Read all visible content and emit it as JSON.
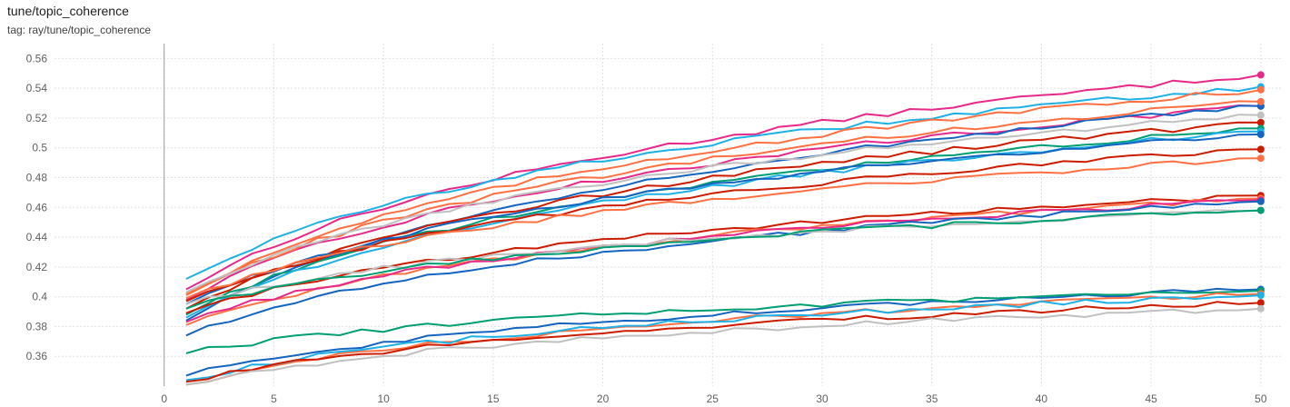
{
  "card": {
    "title": "tune/topic_coherence",
    "tag": "tag: ray/tune/topic_coherence"
  },
  "chart_data": {
    "type": "line",
    "title": "tune/topic_coherence",
    "subtitle": "tag: ray/tune/topic_coherence",
    "xlabel": "",
    "ylabel": "",
    "xlim": [
      -5,
      51
    ],
    "ylim": [
      0.34,
      0.57
    ],
    "x_ticks": [
      0,
      5,
      10,
      15,
      20,
      25,
      30,
      35,
      40,
      45,
      50
    ],
    "y_ticks": [
      0.36,
      0.38,
      0.4,
      0.42,
      0.44,
      0.46,
      0.48,
      0.5,
      0.52,
      0.54,
      0.56
    ],
    "y_tick_labels": [
      "0.36",
      "0.38",
      "0.4",
      "0.42",
      "0.44",
      "0.46",
      "0.48",
      "0.5",
      "0.52",
      "0.54",
      "0.56"
    ],
    "grid": true,
    "legend": "none",
    "x": [
      1,
      50
    ],
    "series": [
      {
        "color": "#e7298a",
        "values": [
          0.405,
          0.549
        ]
      },
      {
        "color": "#1fb0e6",
        "values": [
          0.412,
          0.541
        ]
      },
      {
        "color": "#ff7043",
        "values": [
          0.402,
          0.539
        ]
      },
      {
        "color": "#e7298a",
        "values": [
          0.398,
          0.528
        ]
      },
      {
        "color": "#1565c0",
        "values": [
          0.384,
          0.528
        ]
      },
      {
        "color": "#ff7043",
        "values": [
          0.401,
          0.531
        ]
      },
      {
        "color": "#c0c0c0",
        "values": [
          0.403,
          0.522
        ]
      },
      {
        "color": "#cc1c00",
        "values": [
          0.392,
          0.517
        ]
      },
      {
        "color": "#009e73",
        "values": [
          0.388,
          0.513
        ]
      },
      {
        "color": "#1fb0e6",
        "values": [
          0.386,
          0.511
        ]
      },
      {
        "color": "#1565c0",
        "values": [
          0.395,
          0.509
        ]
      },
      {
        "color": "#cc1c00",
        "values": [
          0.397,
          0.499
        ]
      },
      {
        "color": "#ff7043",
        "values": [
          0.399,
          0.493
        ]
      },
      {
        "color": "#cc1c00",
        "values": [
          0.389,
          0.468
        ]
      },
      {
        "color": "#ff7043",
        "values": [
          0.381,
          0.466
        ]
      },
      {
        "color": "#e7298a",
        "values": [
          0.383,
          0.465
        ]
      },
      {
        "color": "#1565c0",
        "values": [
          0.374,
          0.464
        ]
      },
      {
        "color": "#c0c0c0",
        "values": [
          0.395,
          0.458
        ]
      },
      {
        "color": "#009e73",
        "values": [
          0.392,
          0.458
        ]
      },
      {
        "color": "#1565c0",
        "values": [
          0.347,
          0.405
        ]
      },
      {
        "color": "#009e73",
        "values": [
          0.362,
          0.404
        ]
      },
      {
        "color": "#ff7043",
        "values": [
          0.341,
          0.402
        ]
      },
      {
        "color": "#1fb0e6",
        "values": [
          0.344,
          0.401
        ]
      },
      {
        "color": "#cc1c00",
        "values": [
          0.343,
          0.396
        ]
      },
      {
        "color": "#c0c0c0",
        "values": [
          0.341,
          0.392
        ]
      }
    ]
  }
}
